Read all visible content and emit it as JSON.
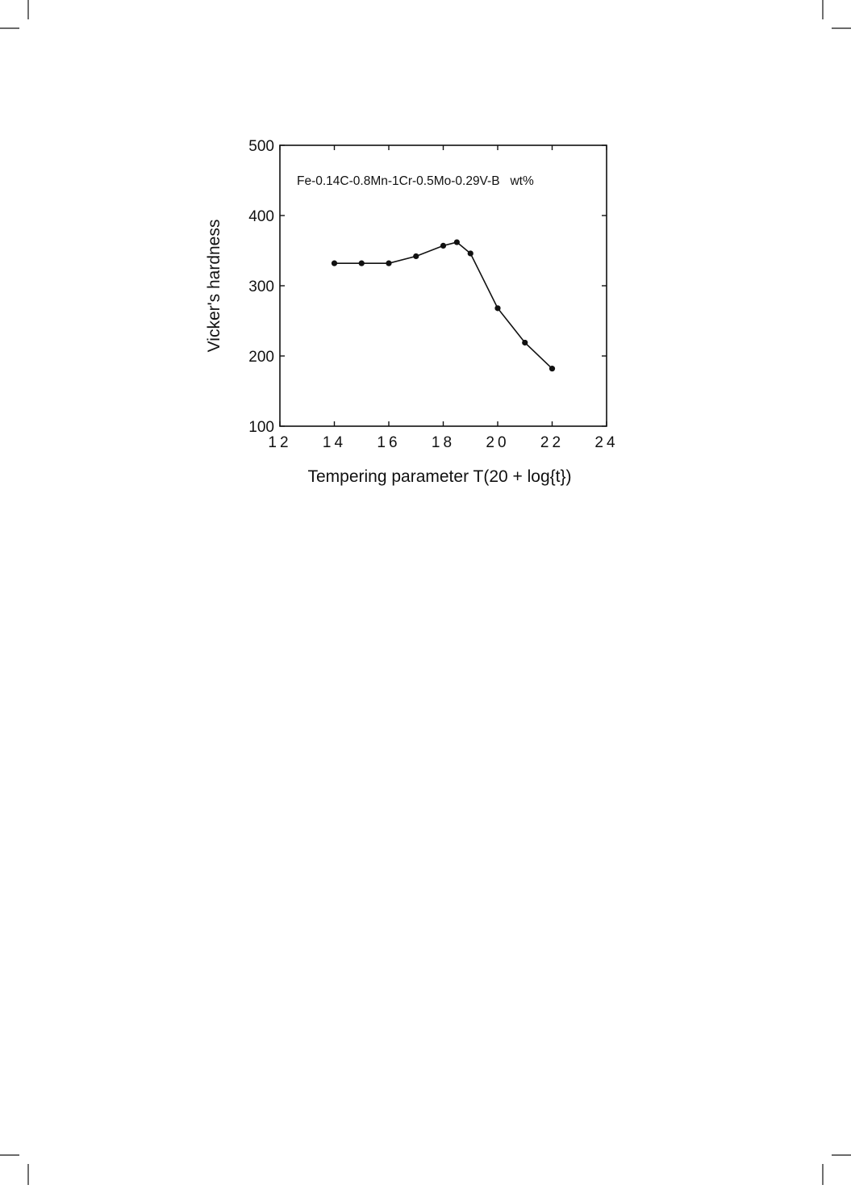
{
  "chart_data": {
    "type": "line",
    "annotation": "Fe-0.14C-0.8Mn-1Cr-0.5Mo-0.29V-B   wt%",
    "xlabel": "Tempering parameter T(20 + log{t})",
    "ylabel": "Vicker's hardness",
    "xlim": [
      12,
      24
    ],
    "ylim": [
      100,
      500
    ],
    "x_ticks": [
      12,
      14,
      16,
      18,
      20,
      22,
      24
    ],
    "x_tick_labels": [
      "12",
      "14",
      "16",
      "18",
      "20",
      "22",
      "24"
    ],
    "y_ticks": [
      100,
      200,
      300,
      400,
      500
    ],
    "y_tick_labels": [
      "100",
      "200",
      "300",
      "400",
      "500"
    ],
    "grid": false,
    "series": [
      {
        "x": [
          14,
          15,
          16,
          17,
          18,
          18.5,
          19,
          20,
          21,
          22
        ],
        "y": [
          332,
          332,
          332,
          342,
          357,
          362,
          346,
          268,
          219,
          182
        ]
      }
    ]
  },
  "colors": {
    "line": "#111111",
    "background": "#ffffff"
  }
}
